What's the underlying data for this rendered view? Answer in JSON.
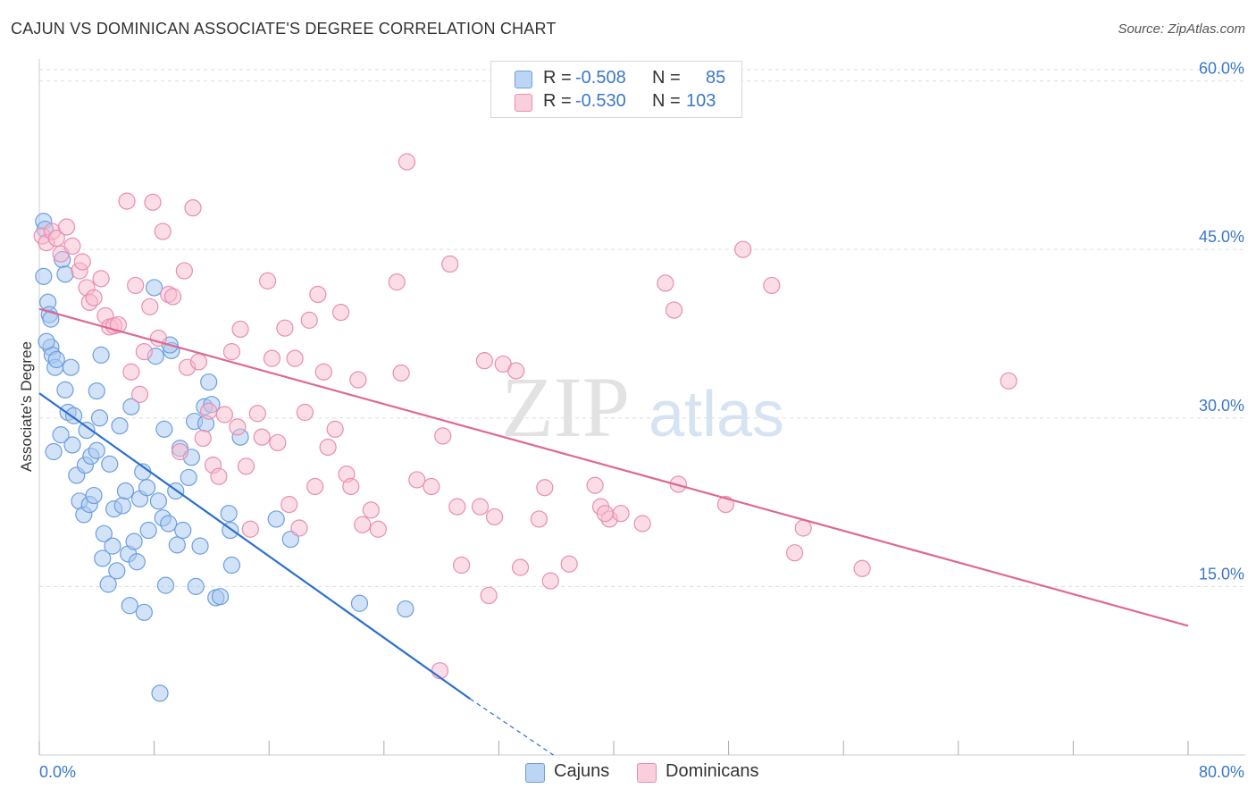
{
  "title": "CAJUN VS DOMINICAN ASSOCIATE'S DEGREE CORRELATION CHART",
  "source": "Source: ZipAtlas.com",
  "watermark": {
    "zip": "ZIP",
    "atlas": "atlas"
  },
  "colors": {
    "cajun_fill": "#a8c8f0",
    "cajun_stroke": "#6b9ee0",
    "cajun_line": "#2a6fd0",
    "dominican_fill": "#f7bcd0",
    "dominican_stroke": "#e98db0",
    "dominican_line": "#e06890",
    "value_text": "#3a77cc",
    "grid": "#dddddd"
  },
  "legend": {
    "cajun": {
      "r_label": "R =",
      "r_value": "-0.508",
      "n_label": "N =",
      "n_value": "85"
    },
    "dominican": {
      "r_label": "R =",
      "r_value": "-0.530",
      "n_label": "N =",
      "n_value": "103"
    }
  },
  "chart_data": {
    "type": "scatter",
    "ylabel": "Associate's Degree",
    "xlabel": "",
    "x_ticks": [
      "0.0%",
      "80.0%"
    ],
    "y_ticks": [
      "15.0%",
      "30.0%",
      "45.0%",
      "60.0%"
    ],
    "xlim": [
      0,
      80
    ],
    "ylim": [
      0,
      61
    ],
    "grid": true,
    "legend_position": "top-center",
    "series": [
      {
        "name": "Cajuns",
        "regression": {
          "x": [
            0,
            30
          ],
          "y": [
            32.2,
            5.0
          ],
          "dashed_to": [
            35.8,
            0
          ]
        },
        "points": [
          [
            0.3,
            47.5
          ],
          [
            0.4,
            46.8
          ],
          [
            0.3,
            42.6
          ],
          [
            0.6,
            40.3
          ],
          [
            0.7,
            39.2
          ],
          [
            0.8,
            38.8
          ],
          [
            0.8,
            36.3
          ],
          [
            0.9,
            35.6
          ],
          [
            1.1,
            34.5
          ],
          [
            1.2,
            35.2
          ],
          [
            1.6,
            44.1
          ],
          [
            1.8,
            42.8
          ],
          [
            1.8,
            32.5
          ],
          [
            2.0,
            30.5
          ],
          [
            2.2,
            34.5
          ],
          [
            2.3,
            27.6
          ],
          [
            2.6,
            24.9
          ],
          [
            2.8,
            22.6
          ],
          [
            3.1,
            21.4
          ],
          [
            3.2,
            25.8
          ],
          [
            3.3,
            28.9
          ],
          [
            3.5,
            22.3
          ],
          [
            3.6,
            26.6
          ],
          [
            3.8,
            23.1
          ],
          [
            4.0,
            27.1
          ],
          [
            4.0,
            32.4
          ],
          [
            4.3,
            35.6
          ],
          [
            4.4,
            17.5
          ],
          [
            4.5,
            19.7
          ],
          [
            4.8,
            15.2
          ],
          [
            4.9,
            25.9
          ],
          [
            5.1,
            18.6
          ],
          [
            5.2,
            21.9
          ],
          [
            5.4,
            16.4
          ],
          [
            5.6,
            29.3
          ],
          [
            5.8,
            22.2
          ],
          [
            6.0,
            23.5
          ],
          [
            6.2,
            17.9
          ],
          [
            6.3,
            13.3
          ],
          [
            6.6,
            19.0
          ],
          [
            6.8,
            17.2
          ],
          [
            7.0,
            22.8
          ],
          [
            7.2,
            25.2
          ],
          [
            7.5,
            23.8
          ],
          [
            7.6,
            20.0
          ],
          [
            8.0,
            41.6
          ],
          [
            8.1,
            35.5
          ],
          [
            8.3,
            22.6
          ],
          [
            8.4,
            5.5
          ],
          [
            8.6,
            21.1
          ],
          [
            8.7,
            29.0
          ],
          [
            8.8,
            15.1
          ],
          [
            9.0,
            20.6
          ],
          [
            9.2,
            36.0
          ],
          [
            9.5,
            23.5
          ],
          [
            9.6,
            18.7
          ],
          [
            9.8,
            27.3
          ],
          [
            10.0,
            20.0
          ],
          [
            10.4,
            24.7
          ],
          [
            10.6,
            26.5
          ],
          [
            10.8,
            29.7
          ],
          [
            10.9,
            15.0
          ],
          [
            11.2,
            18.6
          ],
          [
            11.5,
            31.0
          ],
          [
            11.6,
            29.5
          ],
          [
            11.8,
            33.2
          ],
          [
            12.0,
            31.2
          ],
          [
            12.3,
            14.0
          ],
          [
            12.6,
            14.1
          ],
          [
            13.2,
            21.5
          ],
          [
            13.3,
            20.0
          ],
          [
            13.4,
            16.9
          ],
          [
            14.0,
            28.3
          ],
          [
            16.5,
            21.0
          ],
          [
            17.5,
            19.2
          ],
          [
            22.3,
            13.5
          ],
          [
            25.5,
            13.0
          ],
          [
            1.0,
            27.0
          ],
          [
            1.5,
            28.5
          ],
          [
            2.4,
            30.2
          ],
          [
            4.2,
            30.0
          ],
          [
            6.4,
            31.0
          ],
          [
            7.3,
            12.7
          ],
          [
            9.1,
            36.5
          ],
          [
            0.5,
            36.8
          ]
        ]
      },
      {
        "name": "Dominicans",
        "regression": {
          "x": [
            0,
            80
          ],
          "y": [
            39.7,
            11.5
          ]
        },
        "points": [
          [
            0.2,
            46.2
          ],
          [
            0.5,
            45.6
          ],
          [
            0.9,
            46.6
          ],
          [
            1.2,
            46.0
          ],
          [
            1.5,
            44.6
          ],
          [
            1.9,
            47.0
          ],
          [
            2.3,
            45.3
          ],
          [
            2.8,
            43.1
          ],
          [
            3.0,
            43.9
          ],
          [
            3.3,
            41.6
          ],
          [
            3.5,
            40.3
          ],
          [
            3.8,
            40.7
          ],
          [
            4.3,
            42.4
          ],
          [
            4.6,
            39.1
          ],
          [
            4.9,
            38.1
          ],
          [
            5.2,
            38.2
          ],
          [
            5.5,
            38.3
          ],
          [
            6.1,
            49.3
          ],
          [
            6.4,
            34.1
          ],
          [
            6.7,
            41.8
          ],
          [
            7.0,
            32.1
          ],
          [
            7.3,
            35.9
          ],
          [
            7.7,
            39.9
          ],
          [
            7.9,
            49.2
          ],
          [
            8.3,
            37.1
          ],
          [
            8.6,
            46.6
          ],
          [
            9.0,
            41.0
          ],
          [
            9.3,
            40.8
          ],
          [
            9.8,
            27.0
          ],
          [
            10.1,
            43.1
          ],
          [
            10.3,
            34.5
          ],
          [
            10.7,
            48.7
          ],
          [
            11.1,
            35.0
          ],
          [
            11.4,
            28.2
          ],
          [
            11.8,
            30.6
          ],
          [
            12.1,
            25.8
          ],
          [
            12.5,
            24.8
          ],
          [
            12.9,
            30.3
          ],
          [
            13.4,
            35.9
          ],
          [
            13.8,
            29.2
          ],
          [
            14.0,
            37.9
          ],
          [
            14.4,
            25.7
          ],
          [
            14.7,
            20.1
          ],
          [
            15.2,
            30.4
          ],
          [
            15.5,
            28.3
          ],
          [
            15.9,
            42.2
          ],
          [
            16.2,
            35.3
          ],
          [
            16.6,
            27.8
          ],
          [
            17.1,
            38.0
          ],
          [
            17.4,
            22.3
          ],
          [
            17.8,
            35.3
          ],
          [
            18.1,
            20.2
          ],
          [
            18.5,
            30.5
          ],
          [
            18.8,
            38.7
          ],
          [
            19.2,
            23.9
          ],
          [
            19.4,
            41.0
          ],
          [
            19.8,
            34.1
          ],
          [
            20.1,
            27.4
          ],
          [
            20.6,
            29.0
          ],
          [
            21.0,
            39.4
          ],
          [
            21.4,
            25.0
          ],
          [
            21.7,
            23.9
          ],
          [
            22.2,
            33.4
          ],
          [
            22.5,
            20.5
          ],
          [
            23.1,
            21.8
          ],
          [
            23.6,
            20.1
          ],
          [
            24.9,
            42.1
          ],
          [
            25.2,
            34.0
          ],
          [
            25.6,
            52.8
          ],
          [
            26.3,
            24.5
          ],
          [
            27.3,
            23.9
          ],
          [
            28.1,
            28.4
          ],
          [
            28.6,
            43.7
          ],
          [
            29.1,
            22.1
          ],
          [
            29.4,
            16.9
          ],
          [
            30.7,
            22.1
          ],
          [
            31.0,
            35.1
          ],
          [
            31.3,
            14.2
          ],
          [
            31.7,
            21.2
          ],
          [
            32.3,
            34.8
          ],
          [
            33.2,
            34.2
          ],
          [
            33.5,
            16.7
          ],
          [
            34.8,
            21.0
          ],
          [
            35.2,
            23.8
          ],
          [
            35.6,
            15.5
          ],
          [
            36.9,
            17.0
          ],
          [
            38.7,
            24.0
          ],
          [
            39.1,
            22.1
          ],
          [
            39.7,
            21.0
          ],
          [
            40.5,
            21.5
          ],
          [
            42.0,
            20.6
          ],
          [
            43.6,
            42.0
          ],
          [
            44.2,
            39.6
          ],
          [
            44.5,
            24.1
          ],
          [
            47.8,
            22.3
          ],
          [
            49.0,
            45.0
          ],
          [
            51.0,
            41.8
          ],
          [
            52.6,
            18.0
          ],
          [
            53.2,
            20.2
          ],
          [
            57.3,
            16.6
          ],
          [
            67.5,
            33.3
          ],
          [
            27.9,
            7.5
          ],
          [
            39.4,
            21.5
          ]
        ]
      }
    ]
  }
}
